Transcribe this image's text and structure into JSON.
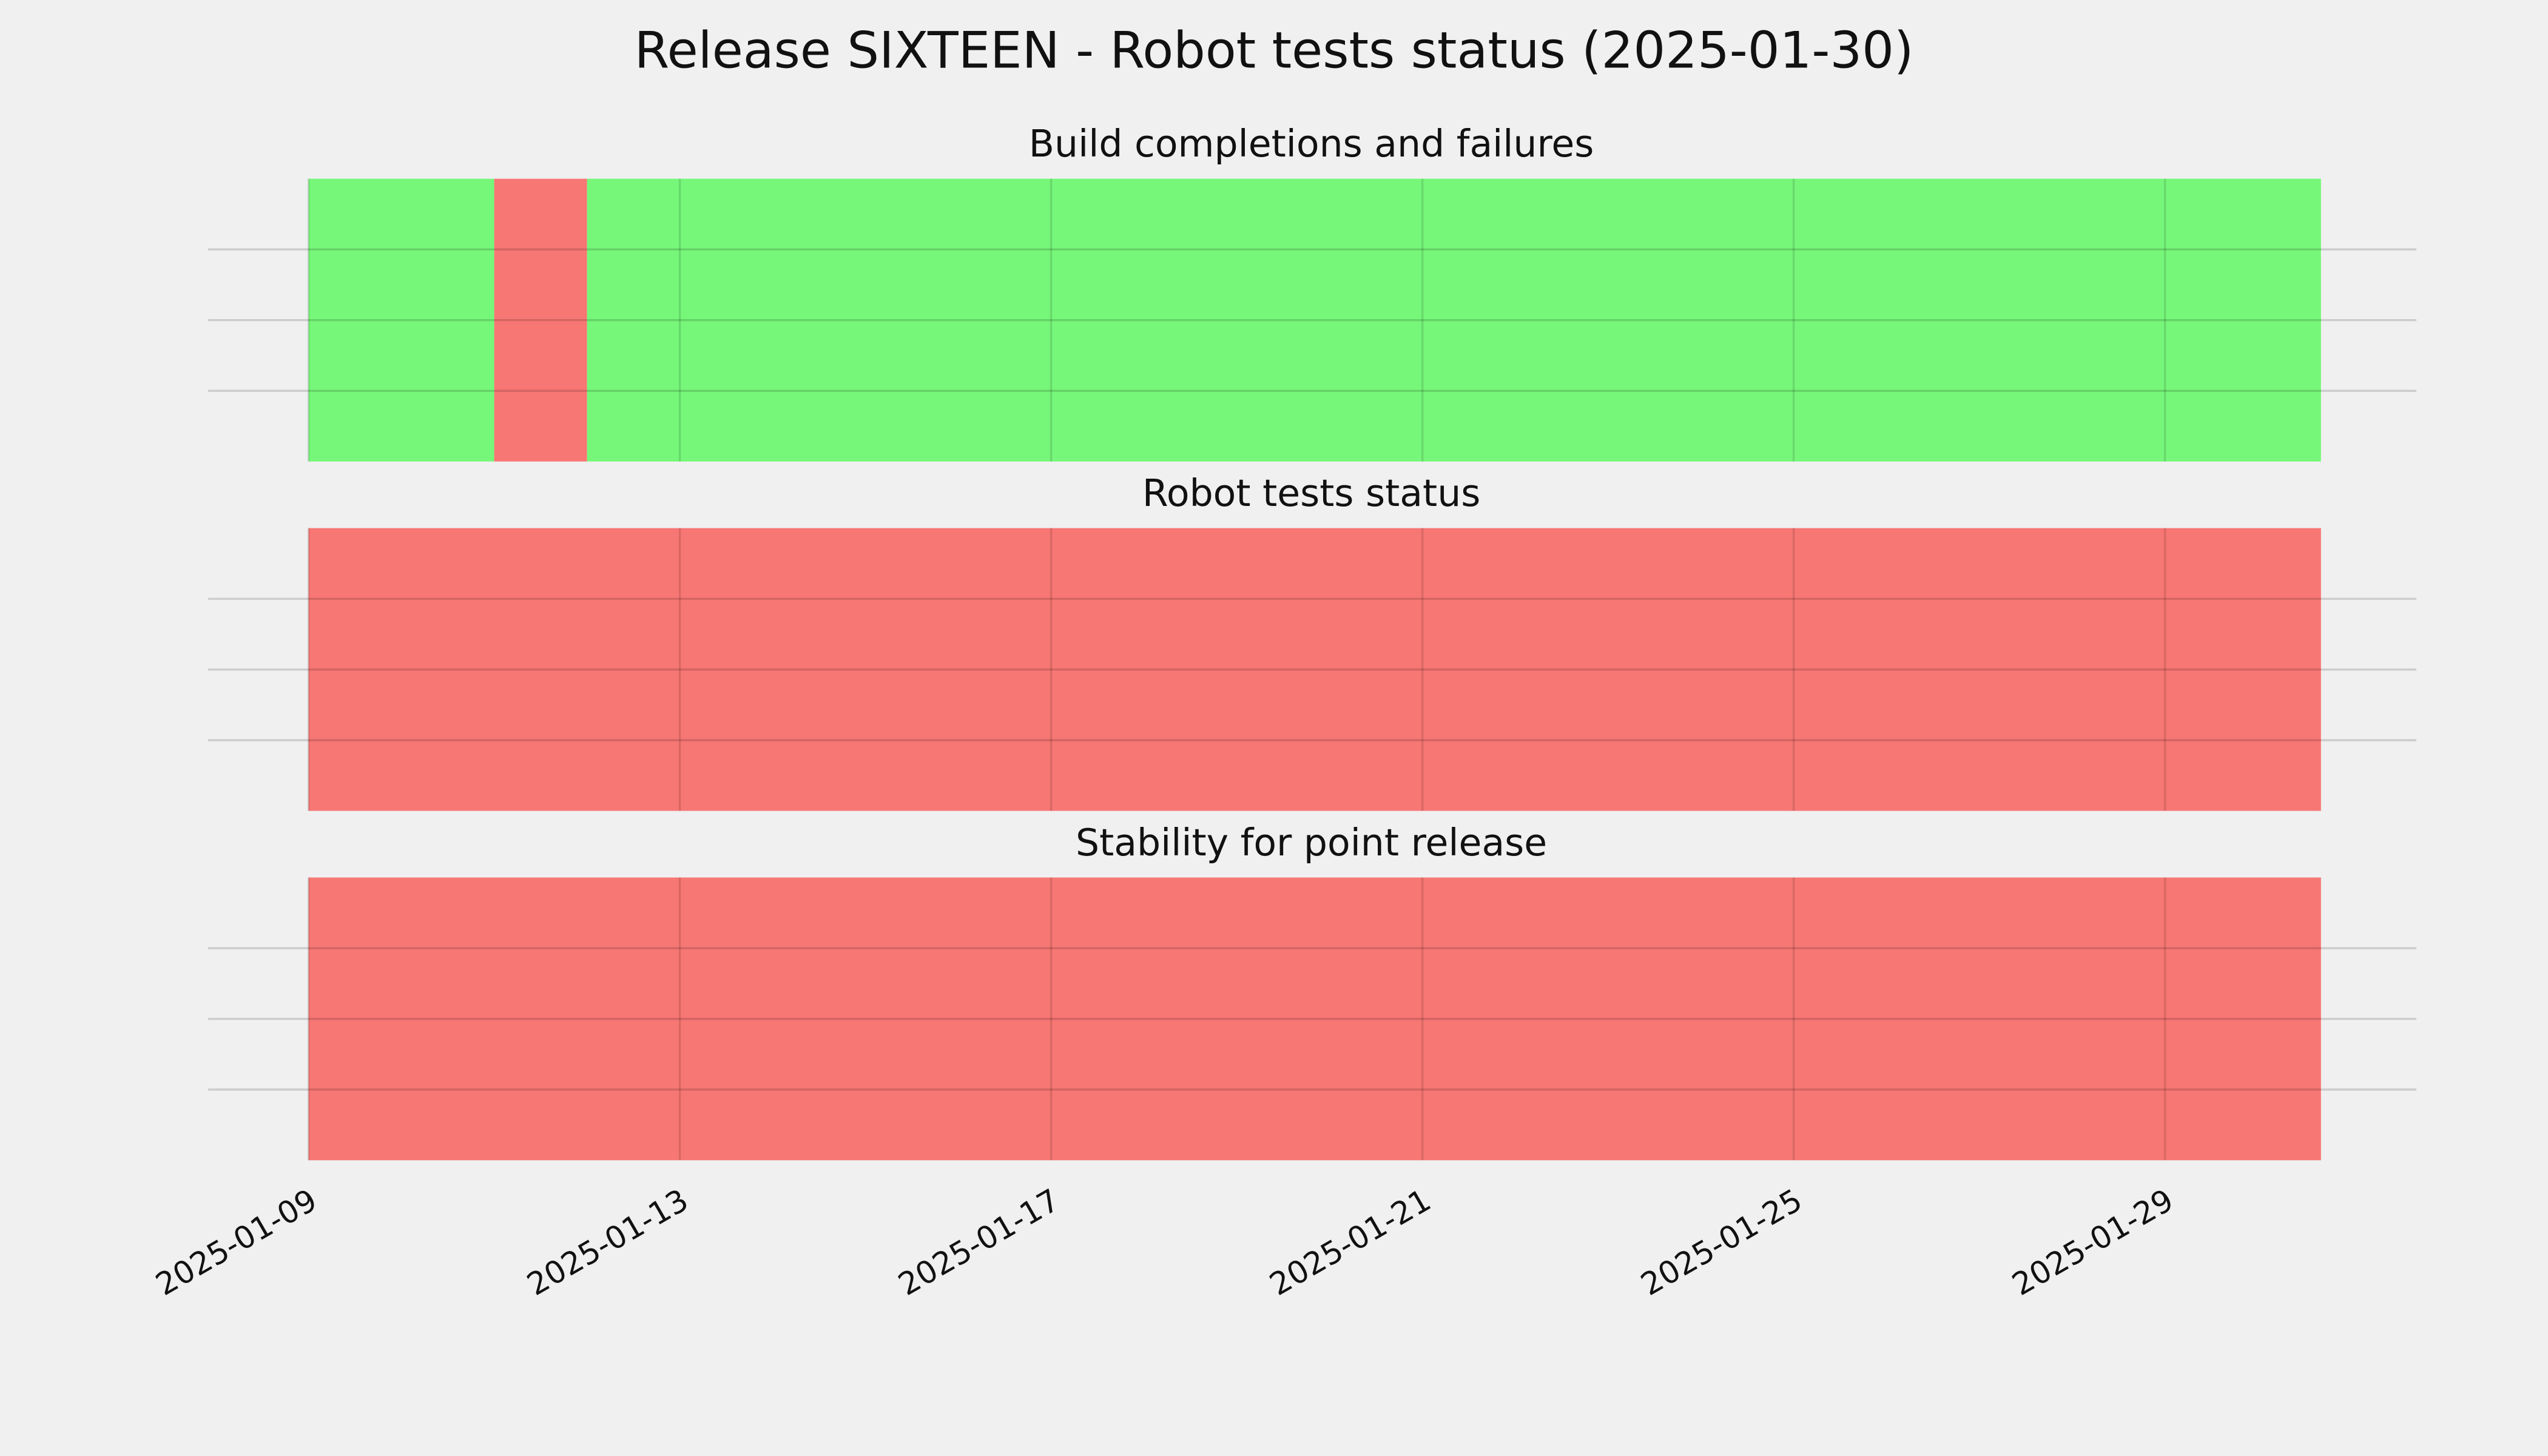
{
  "title": "Release SIXTEEN - Robot tests status (2025-01-30)",
  "chart_data": [
    {
      "type": "timeline",
      "title": "Build completions and failures",
      "spans": [
        {
          "start": "2025-01-09",
          "end": "2025-01-11",
          "color": "#77f77a"
        },
        {
          "start": "2025-01-11",
          "end": "2025-01-12",
          "color": "#f77774"
        },
        {
          "start": "2025-01-12",
          "end": "2025-01-30T16:20",
          "color": "#77f77a"
        }
      ],
      "xlim": [
        "2025-01-07T22:00",
        "2025-01-31T17:00"
      ],
      "xticks": [
        "2025-01-09",
        "2025-01-13",
        "2025-01-17",
        "2025-01-21",
        "2025-01-25",
        "2025-01-29"
      ],
      "ylim": [
        0,
        1
      ],
      "yticks": [
        0.25,
        0.5,
        0.75
      ],
      "grid": true
    },
    {
      "type": "timeline",
      "title": "Robot tests status",
      "spans": [
        {
          "start": "2025-01-09",
          "end": "2025-01-30T16:20",
          "color": "#f77774"
        }
      ],
      "xlim": [
        "2025-01-07T22:00",
        "2025-01-31T17:00"
      ],
      "xticks": [
        "2025-01-09",
        "2025-01-13",
        "2025-01-17",
        "2025-01-21",
        "2025-01-25",
        "2025-01-29"
      ],
      "ylim": [
        0,
        1
      ],
      "yticks": [
        0.25,
        0.5,
        0.75
      ],
      "grid": true
    },
    {
      "type": "timeline",
      "title": "Stability for point release",
      "spans": [
        {
          "start": "2025-01-09",
          "end": "2025-01-30T16:20",
          "color": "#f77774"
        }
      ],
      "xlim": [
        "2025-01-07T22:00",
        "2025-01-31T17:00"
      ],
      "xticks": [
        "2025-01-09",
        "2025-01-13",
        "2025-01-17",
        "2025-01-21",
        "2025-01-25",
        "2025-01-29"
      ],
      "ylim": [
        0,
        1
      ],
      "yticks": [
        0.25,
        0.5,
        0.75
      ],
      "grid": true
    }
  ]
}
